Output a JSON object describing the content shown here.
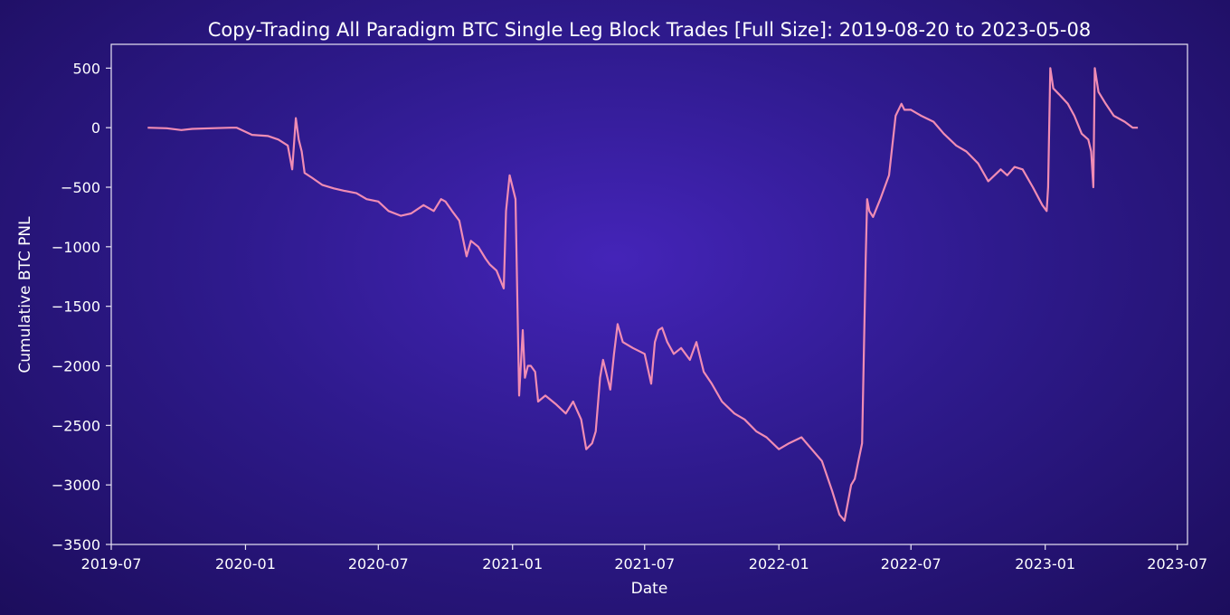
{
  "chart_data": {
    "type": "line",
    "title": "Copy-Trading All Paradigm BTC Single Leg Block Trades [Full Size]: 2019-08-20 to 2023-05-08",
    "xlabel": "Date",
    "ylabel": "Cumulative BTC PNL",
    "xlim": [
      "2019-07-01",
      "2023-07-15"
    ],
    "ylim": [
      -3500,
      700
    ],
    "x_ticks": [
      "2019-07-01",
      "2020-01-01",
      "2020-07-01",
      "2021-01-01",
      "2021-07-01",
      "2022-01-01",
      "2022-07-01",
      "2023-01-01",
      "2023-07-01"
    ],
    "x_tick_labels": [
      "2019-07",
      "2020-01",
      "2020-07",
      "2021-01",
      "2021-07",
      "2022-01",
      "2022-07",
      "2023-01",
      "2023-07"
    ],
    "y_ticks": [
      -3500,
      -3000,
      -2500,
      -2000,
      -1500,
      -1000,
      -500,
      0,
      500
    ],
    "y_tick_labels": [
      "−3500",
      "−3000",
      "−2500",
      "−2000",
      "−1500",
      "−1000",
      "−500",
      "0",
      "500"
    ],
    "grid": false,
    "colors": {
      "line": "#f08cb4",
      "axes": "#e8e4f4"
    },
    "series": [
      {
        "x": [
          "2019-08-20",
          "2019-09-15",
          "2019-10-05",
          "2019-10-20",
          "2019-11-15",
          "2019-12-12",
          "2019-12-20",
          "2020-01-10",
          "2020-02-01",
          "2020-02-15",
          "2020-02-28",
          "2020-03-05",
          "2020-03-10",
          "2020-03-14",
          "2020-03-18",
          "2020-03-22",
          "2020-04-01",
          "2020-04-15",
          "2020-05-01",
          "2020-05-15",
          "2020-06-01",
          "2020-06-15",
          "2020-07-01",
          "2020-07-15",
          "2020-08-01",
          "2020-08-15",
          "2020-09-01",
          "2020-09-15",
          "2020-09-25",
          "2020-10-01",
          "2020-10-10",
          "2020-10-20",
          "2020-10-30",
          "2020-11-05",
          "2020-11-15",
          "2020-11-25",
          "2020-12-01",
          "2020-12-10",
          "2020-12-20",
          "2020-12-23",
          "2020-12-28",
          "2021-01-05",
          "2021-01-10",
          "2021-01-15",
          "2021-01-18",
          "2021-01-22",
          "2021-01-26",
          "2021-02-01",
          "2021-02-05",
          "2021-02-15",
          "2021-03-01",
          "2021-03-15",
          "2021-03-25",
          "2021-04-05",
          "2021-04-12",
          "2021-04-20",
          "2021-04-25",
          "2021-05-01",
          "2021-05-05",
          "2021-05-15",
          "2021-05-20",
          "2021-05-25",
          "2021-06-01",
          "2021-06-15",
          "2021-07-01",
          "2021-07-10",
          "2021-07-15",
          "2021-07-20",
          "2021-07-25",
          "2021-08-01",
          "2021-08-10",
          "2021-08-20",
          "2021-09-01",
          "2021-09-10",
          "2021-09-20",
          "2021-10-01",
          "2021-10-15",
          "2021-11-01",
          "2021-11-15",
          "2021-12-01",
          "2021-12-15",
          "2022-01-01",
          "2022-01-15",
          "2022-02-01",
          "2022-02-15",
          "2022-03-01",
          "2022-03-15",
          "2022-03-25",
          "2022-04-01",
          "2022-04-10",
          "2022-04-15",
          "2022-04-20",
          "2022-04-25",
          "2022-04-30",
          "2022-05-02",
          "2022-05-05",
          "2022-05-10",
          "2022-05-20",
          "2022-06-01",
          "2022-06-10",
          "2022-06-18",
          "2022-06-22",
          "2022-07-01",
          "2022-07-15",
          "2022-08-01",
          "2022-08-15",
          "2022-09-01",
          "2022-09-15",
          "2022-10-01",
          "2022-10-15",
          "2022-11-01",
          "2022-11-10",
          "2022-11-20",
          "2022-12-01",
          "2022-12-15",
          "2022-12-28",
          "2023-01-03",
          "2023-01-05",
          "2023-01-08",
          "2023-01-12",
          "2023-01-20",
          "2023-02-01",
          "2023-02-10",
          "2023-02-20",
          "2023-03-01",
          "2023-03-05",
          "2023-03-08",
          "2023-03-10",
          "2023-03-15",
          "2023-03-25",
          "2023-04-05",
          "2023-04-20",
          "2023-05-01",
          "2023-05-08"
        ],
        "y": [
          0,
          -5,
          -20,
          -10,
          -5,
          0,
          0,
          -60,
          -70,
          -100,
          -150,
          -350,
          80,
          -100,
          -200,
          -380,
          -420,
          -480,
          -510,
          -530,
          -550,
          -600,
          -620,
          -700,
          -740,
          -720,
          -650,
          -700,
          -600,
          -620,
          -700,
          -780,
          -1080,
          -950,
          -1000,
          -1100,
          -1150,
          -1200,
          -1350,
          -700,
          -400,
          -600,
          -2250,
          -1700,
          -2100,
          -2000,
          -2000,
          -2050,
          -2300,
          -2250,
          -2320,
          -2400,
          -2300,
          -2450,
          -2700,
          -2650,
          -2550,
          -2100,
          -1950,
          -2200,
          -1900,
          -1650,
          -1800,
          -1850,
          -1900,
          -2150,
          -1800,
          -1700,
          -1680,
          -1800,
          -1900,
          -1850,
          -1950,
          -1800,
          -2050,
          -2150,
          -2300,
          -2400,
          -2450,
          -2550,
          -2600,
          -2700,
          -2650,
          -2600,
          -2700,
          -2800,
          -3050,
          -3250,
          -3300,
          -3000,
          -2950,
          -2800,
          -2650,
          -1100,
          -600,
          -700,
          -750,
          -600,
          -400,
          100,
          200,
          150,
          150,
          100,
          50,
          -50,
          -150,
          -200,
          -300,
          -450,
          -350,
          -400,
          -330,
          -350,
          -500,
          -650,
          -700,
          -500,
          500,
          330,
          280,
          200,
          100,
          -50,
          -100,
          -200,
          -500,
          500,
          300,
          200,
          100,
          50,
          0,
          0
        ]
      }
    ]
  }
}
